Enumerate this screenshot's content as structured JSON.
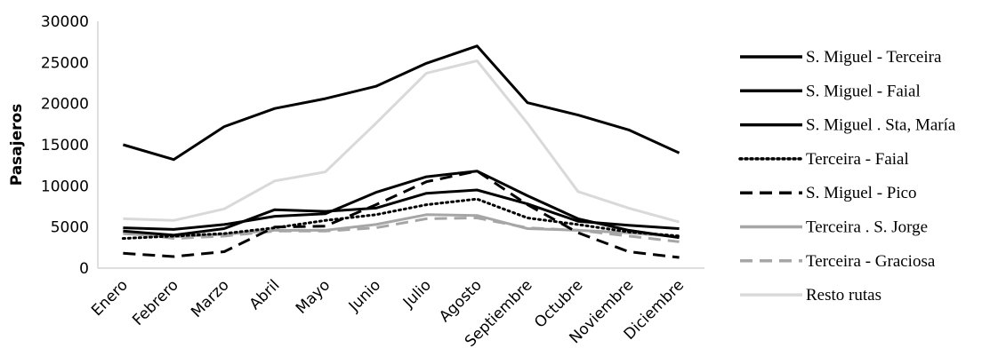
{
  "chart_data": {
    "type": "line",
    "title": "",
    "xlabel": "",
    "ylabel": "Pasajeros",
    "ylim": [
      0,
      30000
    ],
    "yticks": [
      0,
      5000,
      10000,
      15000,
      20000,
      25000,
      30000
    ],
    "grid": false,
    "legend_position": "right",
    "categories": [
      "Enero",
      "Febrero",
      "Marzo",
      "Abril",
      "Mayo",
      "Junio",
      "Julio",
      "Agosto",
      "Septiembre",
      "Octubre",
      "Noviembre",
      "Diciembre"
    ],
    "series": [
      {
        "name": "S. Miguel - Terceira",
        "color": "#000000",
        "dash": "solid",
        "values": [
          15000,
          13200,
          17200,
          19400,
          20600,
          22100,
          24900,
          27000,
          20100,
          18600,
          16800,
          14000
        ]
      },
      {
        "name": "S. Miguel - Faial",
        "color": "#000000",
        "dash": "solid",
        "values": [
          4900,
          4700,
          5300,
          6300,
          6600,
          9200,
          11100,
          11800,
          8800,
          6000,
          4600,
          3700
        ]
      },
      {
        "name": "S. Miguel . Sta, María",
        "color": "#000000",
        "dash": "solid",
        "values": [
          4500,
          4000,
          4800,
          7100,
          6900,
          7300,
          9100,
          9500,
          7800,
          5700,
          5200,
          4800
        ]
      },
      {
        "name": "Terceira - Faial",
        "color": "#000000",
        "dash": "dotted",
        "values": [
          3600,
          3900,
          4200,
          4900,
          5800,
          6500,
          7700,
          8400,
          6100,
          5300,
          4400,
          3900
        ]
      },
      {
        "name": "S. Miguel - Pico",
        "color": "#000000",
        "dash": "dashed",
        "values": [
          1800,
          1400,
          2000,
          5000,
          5100,
          7700,
          10500,
          11800,
          7700,
          4300,
          2000,
          1300
        ]
      },
      {
        "name": "Terceira . S. Jorge",
        "color": "#a6a6a6",
        "dash": "solid",
        "values": [
          4200,
          3800,
          4100,
          4600,
          4600,
          5300,
          6500,
          6400,
          4800,
          4600,
          4300,
          3800
        ]
      },
      {
        "name": "Terceira - Graciosa",
        "color": "#a6a6a6",
        "dash": "dashed",
        "values": [
          4400,
          3600,
          3900,
          4500,
          4500,
          4900,
          6000,
          6100,
          4900,
          4600,
          3900,
          3200
        ]
      },
      {
        "name": "Resto rutas",
        "color": "#d9d9d9",
        "dash": "solid",
        "values": [
          6000,
          5800,
          7200,
          10600,
          11700,
          17600,
          23700,
          25200,
          17600,
          9300,
          7300,
          5600
        ]
      }
    ]
  }
}
